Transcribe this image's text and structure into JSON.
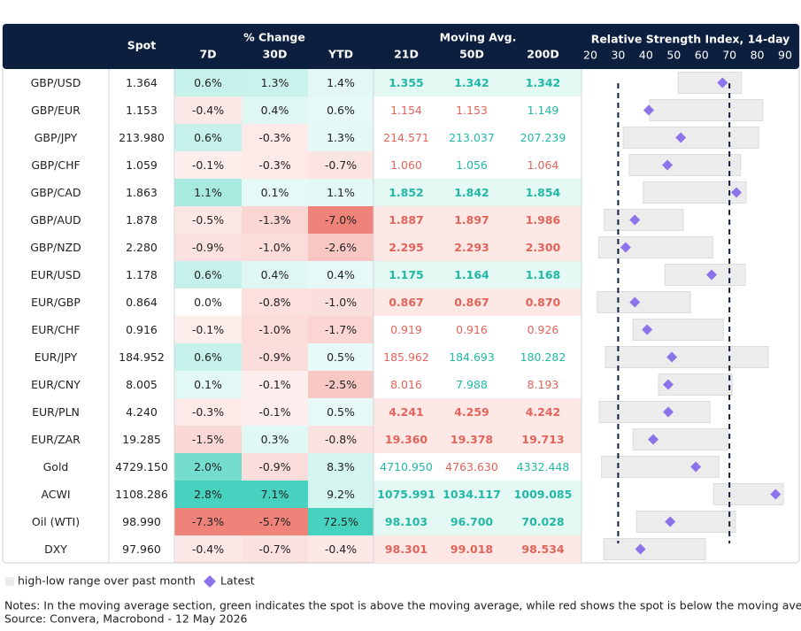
{
  "header": {
    "pair": "",
    "spot": "Spot",
    "change_group": "% Change",
    "change_cols": [
      "7D",
      "30D",
      "YTD"
    ],
    "ma_group": "Moving Avg.",
    "ma_cols": [
      "21D",
      "50D",
      "200D"
    ]
  },
  "table": {
    "rows": [
      [
        "GBP/USD",
        "1.364",
        "0.6%",
        "1.3%",
        "1.4%",
        "1.355",
        "1.342",
        "1.342"
      ],
      [
        "GBP/EUR",
        "1.153",
        "-0.4%",
        "0.4%",
        "0.6%",
        "1.154",
        "1.153",
        "1.149"
      ],
      [
        "GBP/JPY",
        "213.980",
        "0.6%",
        "-0.3%",
        "1.3%",
        "214.571",
        "213.037",
        "207.239"
      ],
      [
        "GBP/CHF",
        "1.059",
        "-0.1%",
        "-0.3%",
        "-0.7%",
        "1.060",
        "1.056",
        "1.064"
      ],
      [
        "GBP/CAD",
        "1.863",
        "1.1%",
        "0.1%",
        "1.1%",
        "1.852",
        "1.842",
        "1.854"
      ],
      [
        "GBP/AUD",
        "1.878",
        "-0.5%",
        "-1.3%",
        "-7.0%",
        "1.887",
        "1.897",
        "1.986"
      ],
      [
        "GBP/NZD",
        "2.280",
        "-0.9%",
        "-1.0%",
        "-2.6%",
        "2.295",
        "2.293",
        "2.300"
      ],
      [
        "EUR/USD",
        "1.178",
        "0.6%",
        "0.4%",
        "0.4%",
        "1.175",
        "1.164",
        "1.168"
      ],
      [
        "EUR/GBP",
        "0.864",
        "0.0%",
        "-0.8%",
        "-1.0%",
        "0.867",
        "0.867",
        "0.870"
      ],
      [
        "EUR/CHF",
        "0.916",
        "-0.1%",
        "-1.0%",
        "-1.7%",
        "0.919",
        "0.916",
        "0.926"
      ],
      [
        "EUR/JPY",
        "184.952",
        "0.6%",
        "-0.9%",
        "0.5%",
        "185.962",
        "184.693",
        "180.282"
      ],
      [
        "EUR/CNY",
        "8.005",
        "0.1%",
        "-0.1%",
        "-2.5%",
        "8.016",
        "7.988",
        "8.193"
      ],
      [
        "EUR/PLN",
        "4.240",
        "-0.3%",
        "-0.1%",
        "0.5%",
        "4.241",
        "4.259",
        "4.242"
      ],
      [
        "EUR/ZAR",
        "19.285",
        "-1.5%",
        "0.3%",
        "-0.8%",
        "19.360",
        "19.378",
        "19.713"
      ],
      [
        "Gold",
        "4729.150",
        "2.0%",
        "-0.9%",
        "8.3%",
        "4710.950",
        "4763.630",
        "4332.448"
      ],
      [
        "ACWI",
        "1108.286",
        "2.8%",
        "7.1%",
        "9.2%",
        "1075.991",
        "1034.117",
        "1009.085"
      ],
      [
        "Oil (WTI)",
        "98.990",
        "-7.3%",
        "-5.7%",
        "72.5%",
        "98.103",
        "96.700",
        "70.028"
      ],
      [
        "DXY",
        "97.960",
        "-0.4%",
        "-0.7%",
        "-0.4%",
        "98.301",
        "99.018",
        "98.534"
      ]
    ]
  },
  "rsi": {
    "title": "Relative Strength Index, 14-day",
    "xlim": [
      20,
      90
    ],
    "xticks": [
      20,
      30,
      40,
      50,
      60,
      70,
      80,
      90
    ],
    "lines": [
      30,
      70
    ],
    "range_color": "#ececec",
    "latest_color": "#8b74ea",
    "rows": [
      [
        51.6,
        74.3,
        67.5
      ],
      [
        41.3,
        82,
        41
      ],
      [
        31.8,
        80.5,
        52.5
      ],
      [
        34,
        74,
        47.7
      ],
      [
        39,
        76,
        72.5
      ],
      [
        25,
        53.4,
        36
      ],
      [
        23,
        64,
        32.7
      ],
      [
        46.8,
        75.7,
        63.6
      ],
      [
        22.5,
        56,
        36
      ],
      [
        35.3,
        67.8,
        40.4
      ],
      [
        25.4,
        84,
        49.3
      ],
      [
        44.5,
        71,
        48
      ],
      [
        23.2,
        63,
        48
      ],
      [
        35.3,
        69.4,
        42.6
      ],
      [
        24,
        66.2,
        57.9
      ],
      [
        64.3,
        89.4,
        86.6
      ],
      [
        36.6,
        72.2,
        48.7
      ],
      [
        24.8,
        61.4,
        38
      ]
    ]
  },
  "legend": {
    "range": "high-low range over past month",
    "latest": "Latest"
  },
  "notes": [
    "Notes: In the moving average section, green indicates the spot is above the moving average, while red shows the spot is below the moving average",
    "Source: Convera, Macrobond - 12 May 2026"
  ]
}
